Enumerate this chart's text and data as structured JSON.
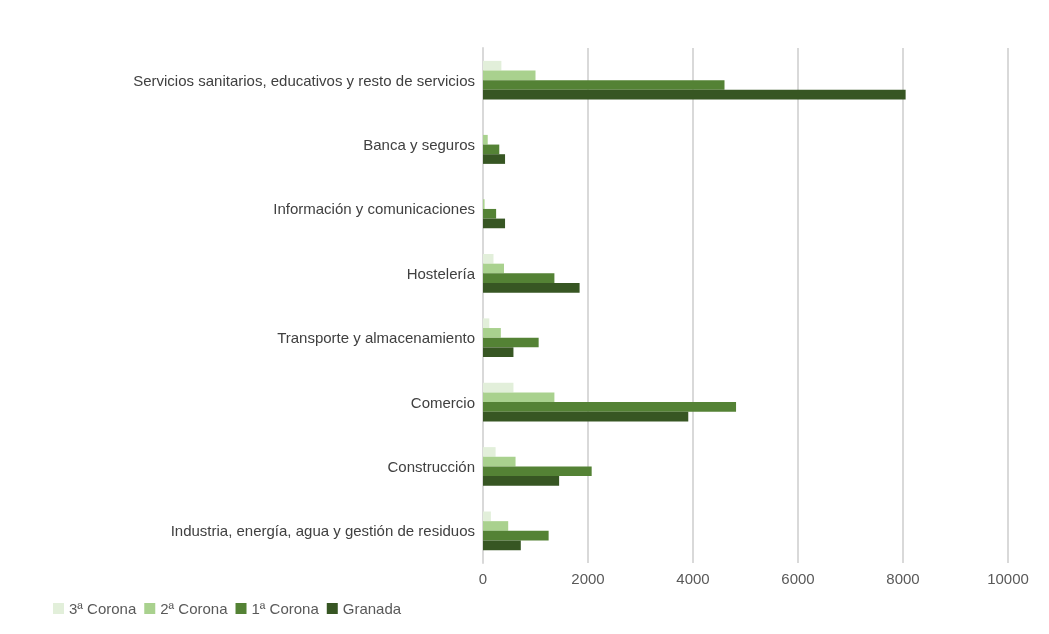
{
  "chart_data": {
    "type": "bar",
    "orientation": "horizontal",
    "categories": [
      "Servicios sanitarios, educativos y resto de servicios",
      "Banca y seguros",
      "Información y comunicaciones",
      "Hostelería",
      "Transporte y almacenamiento",
      "Comercio",
      "Construcción",
      "Industria, energía, agua y gestión de residuos"
    ],
    "series": [
      {
        "name": "3ª Corona",
        "color": "#e2efda",
        "values": [
          350,
          null,
          null,
          200,
          120,
          580,
          240,
          150
        ]
      },
      {
        "name": "2ª Corona",
        "color": "#a9d18e",
        "values": [
          1000,
          90,
          30,
          400,
          340,
          1360,
          620,
          480
        ]
      },
      {
        "name": "1ª Corona",
        "color": "#548235",
        "values": [
          4600,
          310,
          250,
          1360,
          1060,
          4820,
          2070,
          1250
        ]
      },
      {
        "name": "Granada",
        "color": "#375623",
        "values": [
          8050,
          420,
          420,
          1840,
          580,
          3910,
          1450,
          720
        ]
      }
    ],
    "xlim": [
      0,
      10000
    ],
    "xticks": [
      0,
      2000,
      4000,
      6000,
      8000,
      10000
    ],
    "grid": "x",
    "legend": "bottom left"
  }
}
